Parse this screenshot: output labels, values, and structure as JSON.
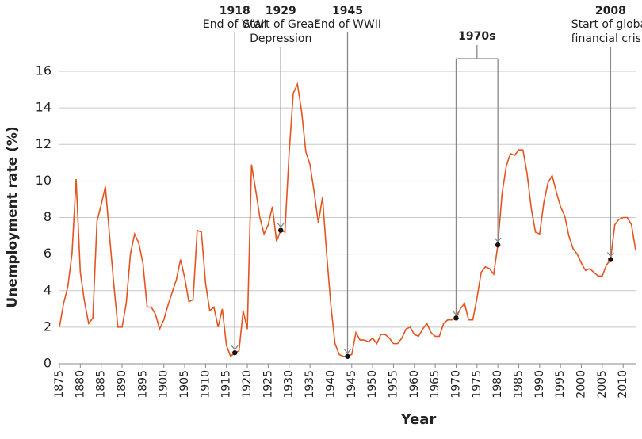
{
  "chart_data": {
    "type": "line",
    "x_label": "Year",
    "y_label": "Unemployment rate (%)",
    "x": [
      1875,
      1876,
      1877,
      1878,
      1879,
      1880,
      1881,
      1882,
      1883,
      1884,
      1885,
      1886,
      1887,
      1888,
      1889,
      1890,
      1891,
      1892,
      1893,
      1894,
      1895,
      1896,
      1897,
      1898,
      1899,
      1900,
      1901,
      1902,
      1903,
      1904,
      1905,
      1906,
      1907,
      1908,
      1909,
      1910,
      1911,
      1912,
      1913,
      1914,
      1915,
      1916,
      1917,
      1918,
      1919,
      1920,
      1921,
      1922,
      1923,
      1924,
      1925,
      1926,
      1927,
      1928,
      1929,
      1930,
      1931,
      1932,
      1933,
      1934,
      1935,
      1936,
      1937,
      1938,
      1939,
      1940,
      1941,
      1942,
      1943,
      1944,
      1945,
      1946,
      1947,
      1948,
      1949,
      1950,
      1951,
      1952,
      1953,
      1954,
      1955,
      1956,
      1957,
      1958,
      1959,
      1960,
      1961,
      1962,
      1963,
      1964,
      1965,
      1966,
      1967,
      1968,
      1969,
      1970,
      1971,
      1972,
      1973,
      1974,
      1975,
      1976,
      1977,
      1978,
      1979,
      1980,
      1981,
      1982,
      1983,
      1984,
      1985,
      1986,
      1987,
      1988,
      1989,
      1990,
      1991,
      1992,
      1993,
      1994,
      1995,
      1996,
      1997,
      1998,
      1999,
      2000,
      2001,
      2002,
      2003,
      2004,
      2005,
      2006,
      2007,
      2008,
      2009,
      2010,
      2011,
      2012,
      2013
    ],
    "series": [
      {
        "color": "#e5541f",
        "values": [
          2.0,
          3.3,
          4.2,
          6.0,
          10.1,
          5.0,
          3.4,
          2.2,
          2.5,
          7.8,
          8.7,
          9.7,
          7.0,
          4.4,
          2.0,
          2.0,
          3.3,
          6.0,
          7.1,
          6.6,
          5.5,
          3.1,
          3.1,
          2.7,
          1.9,
          2.4,
          3.2,
          3.9,
          4.6,
          5.7,
          4.7,
          3.4,
          3.5,
          7.3,
          7.2,
          4.4,
          2.9,
          3.1,
          2.0,
          3.0,
          1.0,
          0.4,
          0.6,
          0.7,
          2.9,
          1.9,
          10.9,
          9.5,
          8.0,
          7.1,
          7.6,
          8.6,
          6.7,
          7.3,
          7.2,
          11.5,
          14.8,
          15.3,
          13.8,
          11.6,
          10.9,
          9.4,
          7.7,
          9.1,
          6.0,
          3.2,
          1.1,
          0.5,
          0.4,
          0.4,
          0.5,
          1.7,
          1.3,
          1.3,
          1.2,
          1.4,
          1.1,
          1.6,
          1.6,
          1.4,
          1.1,
          1.1,
          1.4,
          1.9,
          2.0,
          1.6,
          1.5,
          1.9,
          2.2,
          1.7,
          1.5,
          1.5,
          2.2,
          2.4,
          2.4,
          2.5,
          3.0,
          3.3,
          2.4,
          2.4,
          3.6,
          5.0,
          5.3,
          5.2,
          4.9,
          6.5,
          9.3,
          10.8,
          11.5,
          11.4,
          11.7,
          11.7,
          10.4,
          8.5,
          7.2,
          7.1,
          8.8,
          9.9,
          10.3,
          9.4,
          8.6,
          8.1,
          7.0,
          6.3,
          6.0,
          5.5,
          5.1,
          5.2,
          5.0,
          4.8,
          4.8,
          5.4,
          5.7,
          7.6,
          7.9,
          8.0,
          8.0,
          7.6,
          6.2
        ]
      }
    ],
    "xlim": [
      1875,
      2013
    ],
    "xticks": [
      1875,
      1880,
      1885,
      1890,
      1895,
      1900,
      1905,
      1910,
      1915,
      1920,
      1925,
      1930,
      1935,
      1940,
      1945,
      1950,
      1955,
      1960,
      1965,
      1970,
      1975,
      1980,
      1985,
      1990,
      1995,
      2000,
      2005,
      2010
    ],
    "ylim": [
      0,
      16
    ],
    "yticks": [
      0,
      2,
      4,
      6,
      8,
      10,
      12,
      14,
      16
    ],
    "grid": true,
    "annotations": [
      {
        "year": "1918",
        "lines": [
          "End of WWI"
        ],
        "x": 1917,
        "y": 0.6
      },
      {
        "year": "1929",
        "lines": [
          "Start of Great",
          "Depression"
        ],
        "x": 1928,
        "y": 7.3
      },
      {
        "year": "1945",
        "lines": [
          "End of WWII"
        ],
        "x": 1944,
        "y": 0.4
      },
      {
        "year": "2008",
        "lines": [
          "Start of global",
          "financial crisis"
        ],
        "x": 2007,
        "y": 5.7
      }
    ],
    "bracket": {
      "label": "1970s",
      "points": [
        {
          "x": 1970,
          "y": 2.5
        },
        {
          "x": 1980,
          "y": 6.5
        }
      ]
    }
  }
}
